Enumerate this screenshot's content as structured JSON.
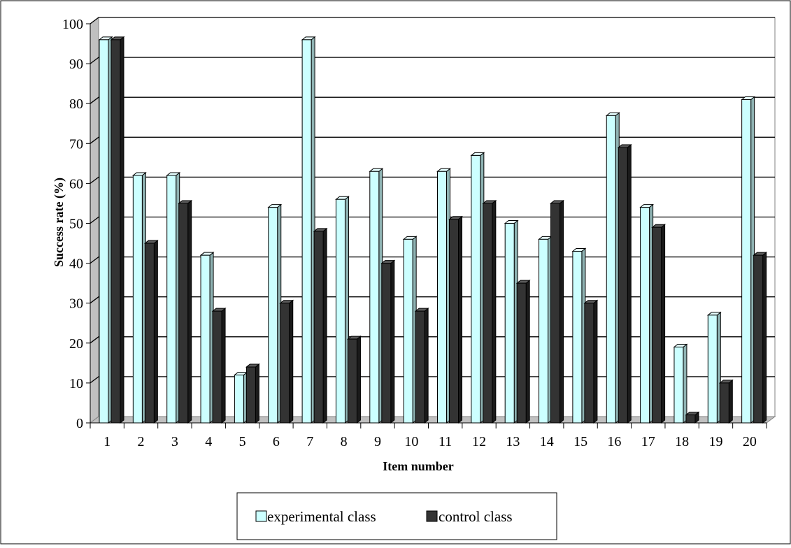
{
  "chart_data": {
    "type": "bar",
    "title": "",
    "xlabel": "Item number",
    "ylabel": "Success rate (%)",
    "ylim": [
      0,
      100
    ],
    "yticks": [
      0,
      10,
      20,
      30,
      40,
      50,
      60,
      70,
      80,
      90,
      100
    ],
    "categories": [
      "1",
      "2",
      "3",
      "4",
      "5",
      "6",
      "7",
      "8",
      "9",
      "10",
      "11",
      "12",
      "13",
      "14",
      "15",
      "16",
      "17",
      "18",
      "19",
      "20"
    ],
    "series": [
      {
        "name": "experimental class",
        "color": "#ccffff",
        "values": [
          96,
          62,
          62,
          42,
          12,
          54,
          96,
          56,
          63,
          46,
          63,
          67,
          50,
          46,
          43,
          77,
          54,
          19,
          27,
          81
        ]
      },
      {
        "name": "control class",
        "color": "#333333",
        "values": [
          96,
          45,
          55,
          28,
          14,
          30,
          48,
          21,
          40,
          28,
          51,
          55,
          35,
          55,
          30,
          69,
          49,
          2,
          10,
          42
        ]
      }
    ],
    "grid": true,
    "legend_position": "bottom",
    "style": "3d-clustered-column"
  }
}
